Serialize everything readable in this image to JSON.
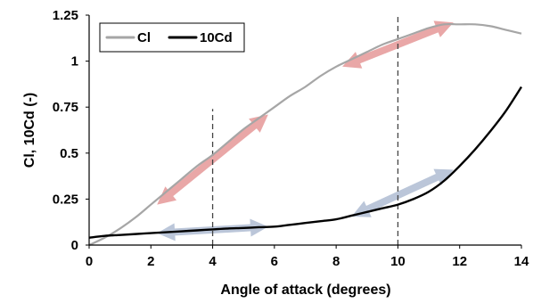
{
  "chart_data": {
    "type": "line",
    "title": "",
    "xlabel": "Angle of attack (degrees)",
    "ylabel": "Cl, 10Cd (-)",
    "xlim": [
      0,
      14
    ],
    "ylim": [
      0,
      1.25
    ],
    "x_ticks": [
      "0",
      "2",
      "4",
      "6",
      "8",
      "10",
      "12",
      "14"
    ],
    "y_ticks": [
      "0",
      "0.25",
      "0.5",
      "0.75",
      "1",
      "1.25"
    ],
    "grid": false,
    "legend_position": "top-left",
    "series": [
      {
        "name": "Cl",
        "color": "#a6a6a6",
        "x": [
          0,
          0.5,
          1,
          1.5,
          2,
          2.5,
          3,
          3.5,
          4,
          4.5,
          5,
          5.5,
          6,
          6.5,
          7,
          7.5,
          8,
          8.5,
          9,
          9.5,
          10,
          10.5,
          11,
          11.5,
          12,
          12.5,
          13,
          13.5,
          14
        ],
        "y": [
          0.0,
          0.04,
          0.09,
          0.15,
          0.22,
          0.29,
          0.36,
          0.43,
          0.49,
          0.56,
          0.63,
          0.69,
          0.75,
          0.81,
          0.86,
          0.92,
          0.97,
          1.01,
          1.05,
          1.09,
          1.12,
          1.15,
          1.18,
          1.2,
          1.2,
          1.2,
          1.19,
          1.17,
          1.15
        ]
      },
      {
        "name": "10Cd",
        "color": "#000000",
        "x": [
          0,
          0.5,
          1,
          1.5,
          2,
          2.5,
          3,
          3.5,
          4,
          4.5,
          5,
          5.5,
          6,
          6.5,
          7,
          7.5,
          8,
          8.5,
          9,
          9.5,
          10,
          10.5,
          11,
          11.5,
          12,
          12.5,
          13,
          13.5,
          14
        ],
        "y": [
          0.04,
          0.05,
          0.055,
          0.06,
          0.065,
          0.07,
          0.075,
          0.08,
          0.085,
          0.09,
          0.093,
          0.097,
          0.1,
          0.11,
          0.12,
          0.13,
          0.14,
          0.16,
          0.18,
          0.2,
          0.22,
          0.25,
          0.29,
          0.35,
          0.43,
          0.52,
          0.62,
          0.73,
          0.86
        ]
      }
    ],
    "annotations": {
      "vlines": [
        {
          "x": 4,
          "y_top": 0.74
        },
        {
          "x": 10,
          "y_top": 1.25
        }
      ],
      "arrows": [
        {
          "color": "#e8a3a3",
          "from": [
            2.2,
            0.22
          ],
          "to": [
            5.8,
            0.71
          ],
          "double": true
        },
        {
          "color": "#e8a3a3",
          "from": [
            8.2,
            0.97
          ],
          "to": [
            11.8,
            1.21
          ],
          "double": true
        },
        {
          "color": "#b8c4d8",
          "from": [
            2.2,
            0.065
          ],
          "to": [
            5.8,
            0.1
          ],
          "double": true
        },
        {
          "color": "#b8c4d8",
          "from": [
            8.5,
            0.155
          ],
          "to": [
            11.8,
            0.41
          ],
          "double": true
        }
      ]
    }
  }
}
